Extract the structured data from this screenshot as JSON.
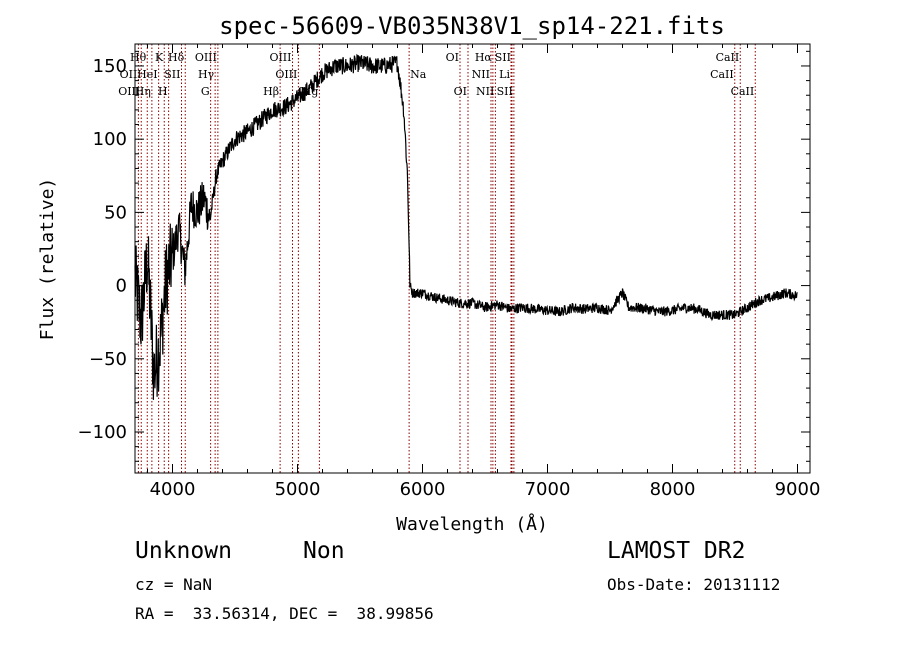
{
  "chart_data": {
    "type": "line",
    "title": "spec-56609-VB035N38V1_sp14-221.fits",
    "xlabel": "Wavelength (Å)",
    "ylabel": "Flux (relative)",
    "xlim": [
      3700,
      9100
    ],
    "ylim": [
      -128,
      165
    ],
    "xticks": [
      4000,
      5000,
      6000,
      7000,
      8000,
      9000
    ],
    "yticks": [
      -100,
      -50,
      0,
      50,
      100,
      150
    ],
    "grid": false,
    "line_color": "#000000",
    "marker_color": "#8b0000",
    "series": [
      {
        "x": [
          3700,
          3750,
          3800,
          3850,
          3900,
          3950,
          4000,
          4050,
          4100,
          4150,
          4200,
          4250,
          4300,
          4350,
          4400,
          4500,
          4600,
          4700,
          4800,
          4900,
          5000,
          5100,
          5200,
          5300,
          5400,
          5500,
          5600,
          5700,
          5800,
          5850,
          5880,
          5900,
          5920,
          5950,
          6000,
          6100,
          6200,
          6300,
          6400,
          6500,
          6600,
          6700,
          6800,
          6900,
          7000,
          7100,
          7200,
          7300,
          7400,
          7500,
          7600,
          7650,
          7700,
          7800,
          7900,
          8000,
          8100,
          8200,
          8300,
          8400,
          8500,
          8600,
          8700,
          8800,
          8900,
          9000
        ],
        "y": [
          5,
          -25,
          20,
          -60,
          -40,
          5,
          20,
          40,
          10,
          55,
          50,
          60,
          45,
          75,
          85,
          100,
          105,
          112,
          120,
          122,
          128,
          135,
          145,
          150,
          150,
          152,
          150,
          150,
          152,
          120,
          75,
          0,
          -5,
          -5,
          -5,
          -8,
          -10,
          -12,
          -12,
          -15,
          -13,
          -16,
          -15,
          -16,
          -17,
          -18,
          -15,
          -16,
          -15,
          -17,
          -5,
          -15,
          -15,
          -16,
          -18,
          -17,
          -15,
          -16,
          -20,
          -20,
          -20,
          -15,
          -10,
          -8,
          -5,
          -7
        ]
      }
    ],
    "line_markers": [
      {
        "name": "Hθ",
        "x": 3798,
        "row": 1,
        "side": "left"
      },
      {
        "name": "K",
        "x": 3934,
        "row": 1,
        "side": "left"
      },
      {
        "name": "Hδ",
        "x": 4102,
        "row": 1,
        "side": "left"
      },
      {
        "name": "OIII",
        "x": 4363,
        "row": 1,
        "side": "left"
      },
      {
        "name": "OIII",
        "x": 4960,
        "row": 1,
        "side": "left"
      },
      {
        "name": "OI",
        "x": 6300,
        "row": 1,
        "side": "left"
      },
      {
        "name": "Hα",
        "x": 6563,
        "row": 1,
        "side": "left"
      },
      {
        "name": "SII",
        "x": 6716,
        "row": 1,
        "side": "left"
      },
      {
        "name": "CaII",
        "x": 8542,
        "row": 1,
        "side": "left"
      },
      {
        "name": "OII",
        "x": 3727,
        "row": 2,
        "side": "left"
      },
      {
        "name": "HeI",
        "x": 3889,
        "row": 2,
        "side": "left"
      },
      {
        "name": "SII",
        "x": 4072,
        "row": 2,
        "side": "left"
      },
      {
        "name": "Hγ",
        "x": 4341,
        "row": 2,
        "side": "left"
      },
      {
        "name": "OIII",
        "x": 5007,
        "row": 2,
        "side": "left"
      },
      {
        "name": "Na",
        "x": 5893,
        "row": 2,
        "side": "right"
      },
      {
        "name": "NII",
        "x": 6548,
        "row": 2,
        "side": "left"
      },
      {
        "name": "Li",
        "x": 6708,
        "row": 2,
        "side": "left"
      },
      {
        "name": "CaII",
        "x": 8498,
        "row": 2,
        "side": "left"
      },
      {
        "name": "OIII",
        "x": 3750,
        "row": 3,
        "side": "left"
      },
      {
        "name": "Hη",
        "x": 3835,
        "row": 3,
        "side": "left"
      },
      {
        "name": "H",
        "x": 3969,
        "row": 3,
        "side": "left"
      },
      {
        "name": "G",
        "x": 4305,
        "row": 3,
        "side": "left"
      },
      {
        "name": "Hβ",
        "x": 4861,
        "row": 3,
        "side": "left"
      },
      {
        "name": "Mg",
        "x": 5175,
        "row": 3,
        "side": "left"
      },
      {
        "name": "OI",
        "x": 6364,
        "row": 3,
        "side": "left"
      },
      {
        "name": "NII",
        "x": 6583,
        "row": 3,
        "side": "left"
      },
      {
        "name": "SII",
        "x": 6731,
        "row": 3,
        "side": "left"
      },
      {
        "name": "CaII",
        "x": 8662,
        "row": 3,
        "side": "left"
      }
    ]
  },
  "info": {
    "class": "Unknown",
    "subclass": "Non",
    "survey": "LAMOST DR2",
    "cz": "cz = NaN",
    "obs_date": "Obs-Date: 20131112",
    "coords": "RA =  33.56314, DEC =  38.99856"
  }
}
